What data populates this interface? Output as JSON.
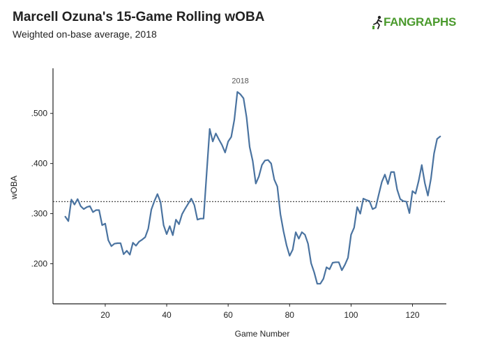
{
  "header": {
    "title": "Marcell Ozuna's 15-Game Rolling wOBA",
    "subtitle": "Weighted on-base average, 2018",
    "logo_text": "FANGRAPHS",
    "logo_icon": "fangraphs-runner-icon"
  },
  "colors": {
    "line": "#4a73a0",
    "logo_green": "#4a9a2c",
    "axis": "#222222",
    "reference": "#333333"
  },
  "chart_data": {
    "type": "line",
    "title": "Marcell Ozuna's 15-Game Rolling wOBA",
    "subtitle": "Weighted on-base average, 2018",
    "xlabel": "Game Number",
    "ylabel": "wOBA",
    "xlim": [
      3,
      131
    ],
    "ylim": [
      0.12,
      0.59
    ],
    "xticks": [
      20,
      40,
      60,
      80,
      100,
      120
    ],
    "yticks": [
      0.2,
      0.3,
      0.4,
      0.5
    ],
    "ytick_labels": [
      ".200",
      ".300",
      ".400",
      ".500"
    ],
    "reference_line": {
      "y": 0.324,
      "style": "dotted"
    },
    "annotation": {
      "text": "2018",
      "x": 63.5,
      "y": 0.56
    },
    "grid": false,
    "legend": "none",
    "series": [
      {
        "x": [
          7,
          8,
          9,
          10,
          11,
          12,
          13,
          14,
          15,
          16,
          17,
          18,
          19,
          20,
          21,
          22,
          23,
          24,
          25,
          26,
          27,
          28,
          29,
          30,
          31,
          32,
          33,
          34,
          35,
          36,
          37,
          38,
          39,
          40,
          41,
          42,
          43,
          44,
          45,
          46,
          47,
          48,
          49,
          50,
          51,
          52,
          53,
          54,
          55,
          56,
          57,
          58,
          59,
          60,
          61,
          62,
          63,
          64,
          65,
          66,
          67,
          68,
          69,
          70,
          71,
          72,
          73,
          74,
          75,
          76,
          77,
          78,
          79,
          80,
          81,
          82,
          83,
          84,
          85,
          86,
          87,
          88,
          89,
          90,
          91,
          92,
          93,
          94,
          95,
          96,
          97,
          98,
          99,
          100,
          101,
          102,
          103,
          104,
          105,
          106,
          107,
          108,
          109,
          110,
          111,
          112,
          113,
          114,
          115,
          116,
          117,
          118,
          119,
          120,
          121,
          122,
          123,
          124,
          125,
          126,
          127,
          128,
          129
        ],
        "values": [
          0.294,
          0.285,
          0.328,
          0.318,
          0.329,
          0.315,
          0.309,
          0.313,
          0.315,
          0.303,
          0.307,
          0.307,
          0.277,
          0.28,
          0.247,
          0.235,
          0.24,
          0.241,
          0.241,
          0.219,
          0.226,
          0.218,
          0.242,
          0.236,
          0.244,
          0.248,
          0.253,
          0.27,
          0.308,
          0.325,
          0.339,
          0.323,
          0.277,
          0.259,
          0.275,
          0.257,
          0.288,
          0.279,
          0.299,
          0.31,
          0.32,
          0.33,
          0.317,
          0.288,
          0.29,
          0.29,
          0.38,
          0.469,
          0.444,
          0.46,
          0.448,
          0.437,
          0.422,
          0.444,
          0.453,
          0.487,
          0.543,
          0.538,
          0.53,
          0.492,
          0.433,
          0.405,
          0.36,
          0.374,
          0.397,
          0.406,
          0.407,
          0.4,
          0.368,
          0.354,
          0.299,
          0.265,
          0.237,
          0.216,
          0.228,
          0.263,
          0.25,
          0.263,
          0.258,
          0.24,
          0.201,
          0.183,
          0.16,
          0.16,
          0.17,
          0.193,
          0.189,
          0.202,
          0.203,
          0.203,
          0.187,
          0.198,
          0.212,
          0.258,
          0.272,
          0.313,
          0.3,
          0.33,
          0.327,
          0.325,
          0.309,
          0.312,
          0.338,
          0.363,
          0.378,
          0.359,
          0.383,
          0.383,
          0.348,
          0.329,
          0.325,
          0.324,
          0.301,
          0.345,
          0.34,
          0.365,
          0.397,
          0.361,
          0.336,
          0.37,
          0.42,
          0.449,
          0.454
        ]
      }
    ]
  }
}
